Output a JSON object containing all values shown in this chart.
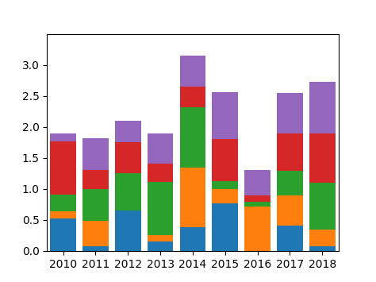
{
  "years": [
    2010,
    2011,
    2012,
    2013,
    2014,
    2015,
    2016,
    2017,
    2018
  ],
  "blue": [
    0.53,
    0.08,
    0.65,
    0.15,
    0.38,
    0.77,
    0.0,
    0.41,
    0.07
  ],
  "orange": [
    0.11,
    0.4,
    0.0,
    0.1,
    0.97,
    0.23,
    0.72,
    0.48,
    0.28
  ],
  "green": [
    0.27,
    0.52,
    0.6,
    0.86,
    0.97,
    0.13,
    0.07,
    0.4,
    0.75
  ],
  "red": [
    0.86,
    0.3,
    0.5,
    0.3,
    0.33,
    0.68,
    0.1,
    0.6,
    0.8
  ],
  "purple": [
    0.13,
    0.52,
    0.35,
    0.48,
    0.5,
    0.75,
    0.41,
    0.66,
    0.83
  ],
  "colors": [
    "#1f77b4",
    "#ff7f0e",
    "#2ca02c",
    "#d62728",
    "#9467bd"
  ],
  "ylim": [
    0.0,
    3.5
  ],
  "yticks": [
    0.0,
    0.5,
    1.0,
    1.5,
    2.0,
    2.5,
    3.0
  ],
  "bar_width": 0.8,
  "xlim": [
    2009.5,
    2018.5
  ],
  "figsize": [
    4.74,
    3.55
  ],
  "dpi": 100
}
